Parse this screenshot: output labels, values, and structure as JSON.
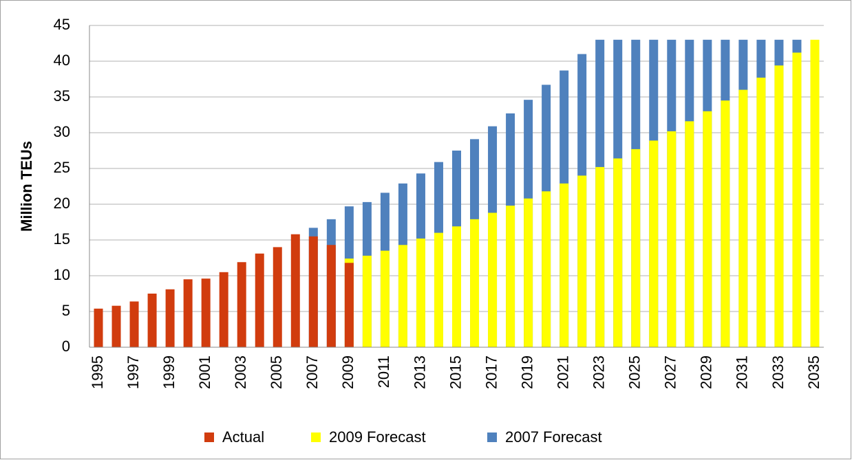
{
  "chart_data": {
    "type": "bar",
    "stacked": false,
    "grid": true,
    "legend": "bottom",
    "ylabel": "Million TEUs",
    "categories": [
      "1995",
      null,
      "1997",
      null,
      "1999",
      null,
      "2001",
      null,
      "2003",
      null,
      "2005",
      null,
      "2007",
      null,
      "2009",
      null,
      "2011",
      null,
      "2013",
      null,
      "2015",
      null,
      "2017",
      null,
      "2019",
      null,
      "2021",
      null,
      "2023",
      null,
      "2025",
      null,
      "2027",
      null,
      "2029",
      null,
      "2031",
      null,
      "2033",
      null,
      "2035"
    ],
    "ylim": [
      0,
      45
    ],
    "yticks": [
      0,
      5,
      10,
      15,
      20,
      25,
      30,
      35,
      40,
      45
    ],
    "series": [
      {
        "name": "Actual",
        "color": "#d13c0e",
        "values": [
          5.4,
          5.8,
          6.4,
          7.5,
          8.1,
          9.5,
          9.6,
          10.5,
          11.9,
          13.1,
          14.0,
          15.8,
          15.5,
          14.3,
          11.8,
          null,
          null,
          null,
          null,
          null,
          null,
          null,
          null,
          null,
          null,
          null,
          null,
          null,
          null,
          null,
          null,
          null,
          null,
          null,
          null,
          null,
          null,
          null,
          null,
          null,
          null
        ]
      },
      {
        "name": "2009 Forecast",
        "color": "#ffff00",
        "values": [
          null,
          null,
          null,
          null,
          null,
          null,
          null,
          null,
          null,
          null,
          null,
          null,
          null,
          null,
          12.4,
          12.8,
          13.5,
          14.3,
          15.2,
          16.0,
          16.9,
          17.9,
          18.8,
          19.8,
          20.8,
          21.8,
          22.9,
          24.0,
          25.2,
          26.4,
          27.7,
          28.9,
          30.2,
          31.6,
          33.0,
          34.5,
          36.0,
          37.7,
          39.4,
          41.2,
          43.0
        ]
      },
      {
        "name": "2007 Forecast",
        "color": "#4f81bd",
        "values": [
          null,
          null,
          null,
          null,
          null,
          null,
          null,
          null,
          null,
          null,
          null,
          null,
          16.7,
          17.9,
          19.7,
          20.3,
          21.6,
          22.9,
          24.3,
          25.9,
          27.5,
          29.1,
          30.9,
          32.7,
          34.6,
          36.7,
          38.7,
          41.0,
          43.0,
          43.0,
          43.0,
          43.0,
          43.0,
          43.0,
          43.0,
          43.0,
          43.0,
          43.0,
          43.0,
          43.0,
          null
        ]
      }
    ]
  }
}
